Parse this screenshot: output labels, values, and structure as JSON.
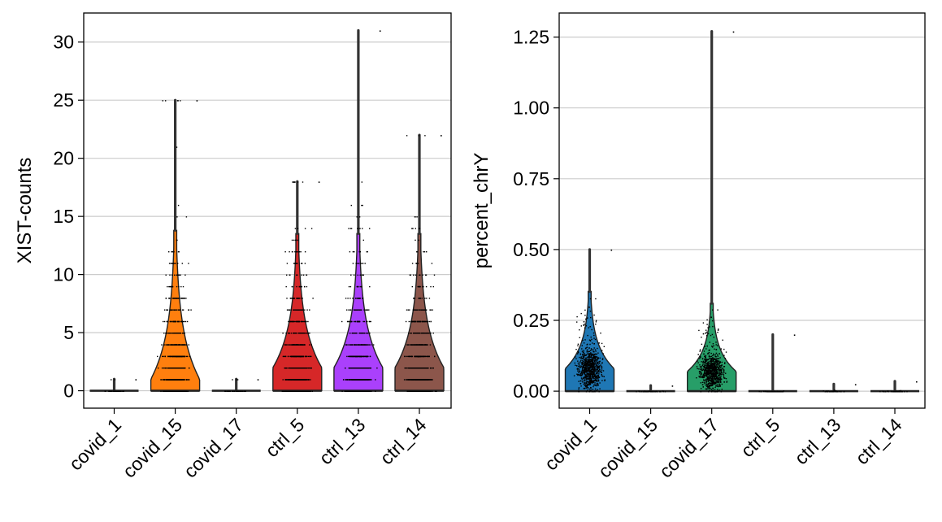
{
  "chart_data": [
    {
      "type": "violin",
      "title": "",
      "xlabel": "",
      "ylabel": "XIST-counts",
      "ylim": [
        -1.5,
        32.5
      ],
      "yticks": [
        0,
        5,
        10,
        15,
        20,
        25,
        30
      ],
      "grid": "horizontal",
      "legend": "none",
      "categories": [
        "covid_1",
        "covid_15",
        "covid_17",
        "ctrl_5",
        "ctrl_13",
        "ctrl_14"
      ],
      "colors": [
        "#1f77b4",
        "#ff7f0e",
        "#279e68",
        "#d62728",
        "#aa40fc",
        "#8c564b"
      ],
      "series": [
        {
          "category": "covid_1",
          "max": 1.0,
          "median": 0,
          "scale": 0.03,
          "discrete": true,
          "levels": [
            0,
            1
          ]
        },
        {
          "category": "covid_15",
          "max": 25.0,
          "median": 1,
          "scale": 4.0,
          "discrete": true,
          "levels": [
            0,
            1,
            2,
            3,
            4,
            5,
            6,
            7,
            8,
            9,
            10,
            11,
            12,
            13,
            15,
            16,
            17,
            21,
            25
          ]
        },
        {
          "category": "covid_17",
          "max": 1.0,
          "median": 0,
          "scale": 0.03,
          "discrete": true,
          "levels": [
            0,
            1
          ]
        },
        {
          "category": "ctrl_5",
          "max": 18.0,
          "median": 2,
          "scale": 3.6,
          "discrete": true,
          "levels": [
            0,
            1,
            2,
            3,
            4,
            5,
            6,
            7,
            8,
            9,
            10,
            11,
            12,
            13,
            14,
            18
          ]
        },
        {
          "category": "ctrl_13",
          "max": 31.0,
          "median": 2,
          "scale": 3.6,
          "discrete": true,
          "levels": [
            0,
            1,
            2,
            3,
            4,
            5,
            6,
            7,
            8,
            9,
            10,
            11,
            12,
            13,
            14,
            15,
            16,
            17,
            18,
            21,
            31
          ]
        },
        {
          "category": "ctrl_14",
          "max": 22.0,
          "median": 2,
          "scale": 3.6,
          "discrete": true,
          "levels": [
            0,
            1,
            2,
            3,
            4,
            5,
            6,
            7,
            8,
            9,
            10,
            11,
            12,
            13,
            14,
            15,
            16,
            22
          ]
        }
      ]
    },
    {
      "type": "violin",
      "title": "",
      "xlabel": "",
      "ylabel": "percent_chrY",
      "ylim": [
        -0.06,
        1.335
      ],
      "yticks": [
        "0.00",
        "0.25",
        "0.50",
        "0.75",
        "1.00",
        "1.25"
      ],
      "grid": "horizontal",
      "legend": "none",
      "categories": [
        "covid_1",
        "covid_15",
        "covid_17",
        "ctrl_5",
        "ctrl_13",
        "ctrl_14"
      ],
      "colors": [
        "#1f77b4",
        "#ff7f0e",
        "#279e68",
        "#d62728",
        "#aa40fc",
        "#8c564b"
      ],
      "series": [
        {
          "category": "covid_1",
          "max": 0.5,
          "median": 0.08,
          "scale": 0.085,
          "discrete": false
        },
        {
          "category": "covid_15",
          "max": 0.02,
          "median": 0,
          "scale": 0.002,
          "discrete": false
        },
        {
          "category": "covid_17",
          "max": 1.27,
          "median": 0.07,
          "scale": 0.075,
          "discrete": false
        },
        {
          "category": "ctrl_5",
          "max": 0.2,
          "median": 0,
          "scale": 0.002,
          "discrete": false
        },
        {
          "category": "ctrl_13",
          "max": 0.025,
          "median": 0,
          "scale": 0.002,
          "discrete": false
        },
        {
          "category": "ctrl_14",
          "max": 0.035,
          "median": 0,
          "scale": 0.002,
          "discrete": false
        }
      ]
    }
  ]
}
